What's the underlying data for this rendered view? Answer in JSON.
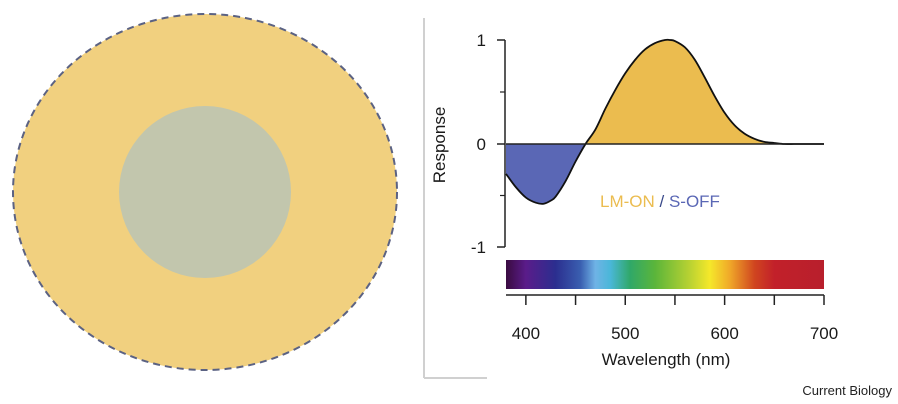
{
  "colors": {
    "surround": "#f1d07f",
    "center": "#c2c6ad",
    "dashed_border": "#5b6283",
    "lm_on": "#ebbc4f",
    "s_off": "#5a67b5",
    "curve": "#111111",
    "frame": "#d0d0d0"
  },
  "receptive_field": {
    "surround_icon": "yellow-surround",
    "center_icon": "grey-center"
  },
  "chart_data": {
    "type": "area",
    "ylabel": "Response",
    "xlabel": "Wavelength (nm)",
    "xlim": [
      380,
      700
    ],
    "ylim": [
      -1,
      1
    ],
    "yticks": [
      1,
      0,
      -1
    ],
    "yticklabels": [
      "1",
      "0",
      "-1"
    ],
    "xticks": [
      400,
      450,
      500,
      550,
      600,
      650,
      700
    ],
    "xticklabels": [
      "400",
      "",
      "500",
      "",
      "600",
      "",
      "700"
    ],
    "grid": false,
    "series": [
      {
        "name": "LM-ON",
        "color": "#ebbc4f",
        "x": [
          460,
          470,
          480,
          490,
          500,
          510,
          520,
          530,
          540,
          545,
          550,
          560,
          570,
          580,
          590,
          600,
          610,
          620,
          630,
          640,
          650,
          660,
          670,
          680,
          690,
          700
        ],
        "y": [
          0,
          0.14,
          0.34,
          0.52,
          0.68,
          0.81,
          0.91,
          0.97,
          1.0,
          1.0,
          0.99,
          0.93,
          0.81,
          0.64,
          0.46,
          0.3,
          0.18,
          0.1,
          0.05,
          0.02,
          0.01,
          0.0,
          0.0,
          0.0,
          0.0,
          0.0
        ]
      },
      {
        "name": "S-OFF",
        "color": "#5a67b5",
        "x": [
          380,
          390,
          400,
          410,
          418,
          425,
          430,
          440,
          450,
          460
        ],
        "y": [
          -0.29,
          -0.42,
          -0.52,
          -0.57,
          -0.58,
          -0.55,
          -0.51,
          -0.36,
          -0.17,
          0
        ]
      }
    ],
    "spectrum_bar": {
      "stops": [
        {
          "nm": 380,
          "color": "#3a0b40"
        },
        {
          "nm": 400,
          "color": "#5a1c8a"
        },
        {
          "nm": 430,
          "color": "#2b2e8f"
        },
        {
          "nm": 455,
          "color": "#3a5fb0"
        },
        {
          "nm": 470,
          "color": "#6fb3e6"
        },
        {
          "nm": 485,
          "color": "#4ab7d8"
        },
        {
          "nm": 505,
          "color": "#30a868"
        },
        {
          "nm": 530,
          "color": "#5bb53a"
        },
        {
          "nm": 565,
          "color": "#b9d232"
        },
        {
          "nm": 585,
          "color": "#f5e82a"
        },
        {
          "nm": 605,
          "color": "#f0a929"
        },
        {
          "nm": 630,
          "color": "#d0451f"
        },
        {
          "nm": 650,
          "color": "#c2202a"
        },
        {
          "nm": 700,
          "color": "#b81f2c"
        }
      ]
    },
    "annotation": {
      "lm_label": "LM-ON",
      "separator": " / ",
      "s_label": "S-OFF"
    }
  },
  "source": "Current Biology"
}
